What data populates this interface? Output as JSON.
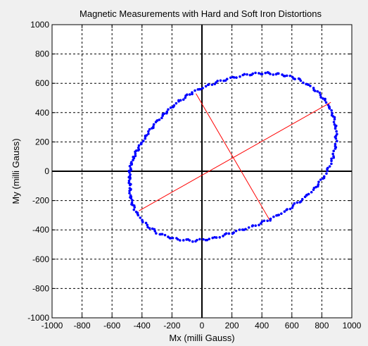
{
  "chart_data": {
    "type": "scatter",
    "title": "Magnetic Measurements with Hard and Soft Iron Distortions",
    "xlabel": "Mx (milli Gauss)",
    "ylabel": "My (milli Gauss)",
    "xlim": [
      -1000,
      1000
    ],
    "ylim": [
      -1000,
      1000
    ],
    "xticks": [
      -1000,
      -800,
      -600,
      -400,
      -200,
      0,
      200,
      400,
      600,
      800,
      1000
    ],
    "yticks": [
      -1000,
      -800,
      -600,
      -400,
      -200,
      0,
      200,
      400,
      600,
      800,
      1000
    ],
    "grid": true,
    "colors": {
      "background": "#f0f0f0",
      "axes": "#ffffff",
      "points": "#0000ff",
      "axis_lines": "#ff0000"
    },
    "series": [
      {
        "values": [
          [
            -480,
            -100
          ],
          [
            -485,
            -30
          ],
          [
            -475,
            40
          ],
          [
            -450,
            110
          ],
          [
            -410,
            180
          ],
          [
            -360,
            260
          ],
          [
            -300,
            340
          ],
          [
            -230,
            410
          ],
          [
            -150,
            480
          ],
          [
            -60,
            540
          ],
          [
            50,
            590
          ],
          [
            170,
            630
          ],
          [
            300,
            660
          ],
          [
            420,
            670
          ],
          [
            530,
            660
          ],
          [
            640,
            630
          ],
          [
            740,
            570
          ],
          [
            820,
            490
          ],
          [
            870,
            400
          ],
          [
            895,
            300
          ],
          [
            895,
            190
          ],
          [
            870,
            80
          ],
          [
            820,
            -30
          ],
          [
            750,
            -120
          ],
          [
            660,
            -200
          ],
          [
            560,
            -270
          ],
          [
            450,
            -330
          ],
          [
            330,
            -380
          ],
          [
            200,
            -420
          ],
          [
            70,
            -460
          ],
          [
            -60,
            -475
          ],
          [
            -190,
            -460
          ],
          [
            -300,
            -420
          ],
          [
            -390,
            -350
          ],
          [
            -450,
            -260
          ],
          [
            -478,
            -180
          ]
        ]
      }
    ],
    "principal_axes": [
      {
        "from": [
          -420,
          -270
        ],
        "to": [
          860,
          470
        ]
      },
      {
        "from": [
          -40,
          530
        ],
        "to": [
          450,
          -330
        ]
      }
    ]
  }
}
